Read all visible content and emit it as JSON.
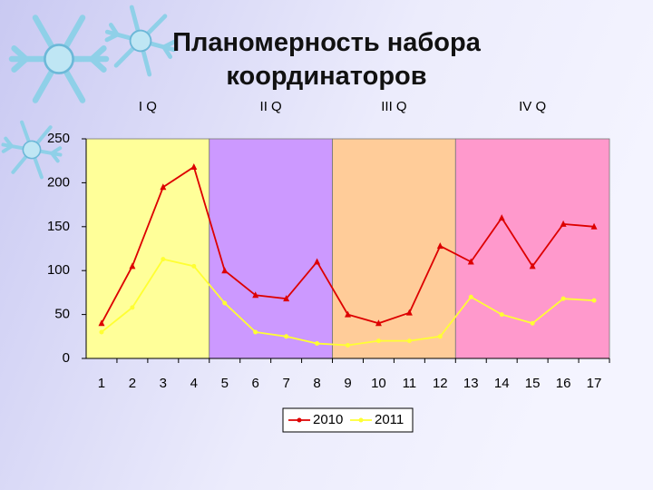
{
  "title": "Планомерность набора координаторов",
  "chart_data": {
    "type": "line",
    "quarters": [
      {
        "label": "I Q",
        "color": "#ffff99"
      },
      {
        "label": "II Q",
        "color": "#cc99ff"
      },
      {
        "label": "III Q",
        "color": "#ffcc99"
      },
      {
        "label": "IV Q",
        "color": "#ff99cc"
      }
    ],
    "categories": [
      "1",
      "2",
      "3",
      "4",
      "5",
      "6",
      "7",
      "8",
      "9",
      "10",
      "11",
      "12",
      "13",
      "14",
      "15",
      "16",
      "17"
    ],
    "series": [
      {
        "name": "2010",
        "color": "#dd0000",
        "values": [
          40,
          105,
          195,
          218,
          100,
          72,
          68,
          110,
          50,
          40,
          52,
          128,
          110,
          160,
          105,
          153,
          150
        ]
      },
      {
        "name": "2011",
        "color": "#ffff33",
        "values": [
          30,
          58,
          113,
          105,
          63,
          30,
          25,
          17,
          15,
          20,
          20,
          25,
          70,
          50,
          40,
          68,
          66
        ]
      }
    ],
    "ylim": [
      0,
      250
    ],
    "yticks": [
      0,
      50,
      100,
      150,
      200,
      250
    ],
    "grid": false
  }
}
